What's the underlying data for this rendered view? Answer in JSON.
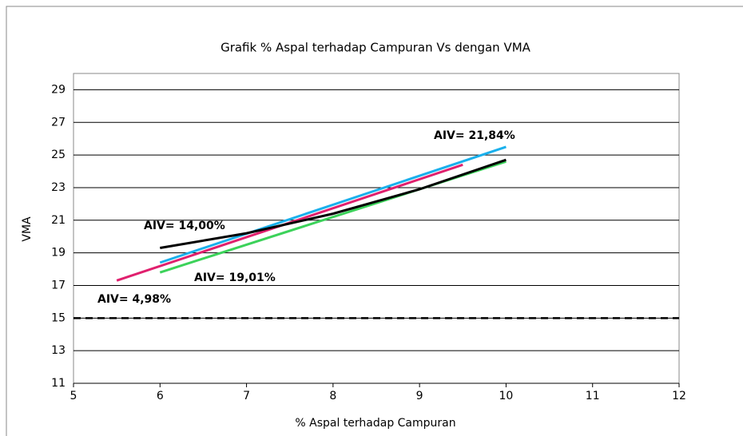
{
  "chart_data": {
    "type": "line",
    "title": "Grafik % Aspal terhadap Campuran Vs dengan VMA",
    "x_label": "% Aspal terhadap Campuran",
    "y_label": "VMA",
    "xlim": [
      5,
      12
    ],
    "xticks": [
      5,
      6,
      7,
      8,
      9,
      10,
      11,
      12
    ],
    "ylim": [
      11,
      30
    ],
    "yticks": [
      11,
      13,
      15,
      17,
      19,
      21,
      23,
      25,
      27,
      29
    ],
    "grid": true,
    "series": [
      {
        "color": "#e0206e",
        "x": [
          5.5,
          9.5
        ],
        "values": [
          17.3,
          24.4
        ]
      },
      {
        "color": "#1ab0ec",
        "x": [
          6,
          10
        ],
        "values": [
          18.4,
          25.5
        ]
      },
      {
        "color": "#3cd25a",
        "x": [
          6,
          10
        ],
        "values": [
          17.8,
          24.6
        ]
      },
      {
        "color": "#000000",
        "x": [
          6,
          7,
          8,
          9,
          10
        ],
        "values": [
          19.3,
          20.2,
          21.4,
          22.9,
          24.7
        ]
      },
      {
        "color": "#000000",
        "dashed": true,
        "x": [
          5,
          12
        ],
        "values": [
          15,
          15
        ]
      }
    ],
    "annotations": [
      "AIV= 21,84%",
      "AIV= 14,00%",
      "AIV= 19,01%",
      "AIV= 4,98%"
    ]
  }
}
